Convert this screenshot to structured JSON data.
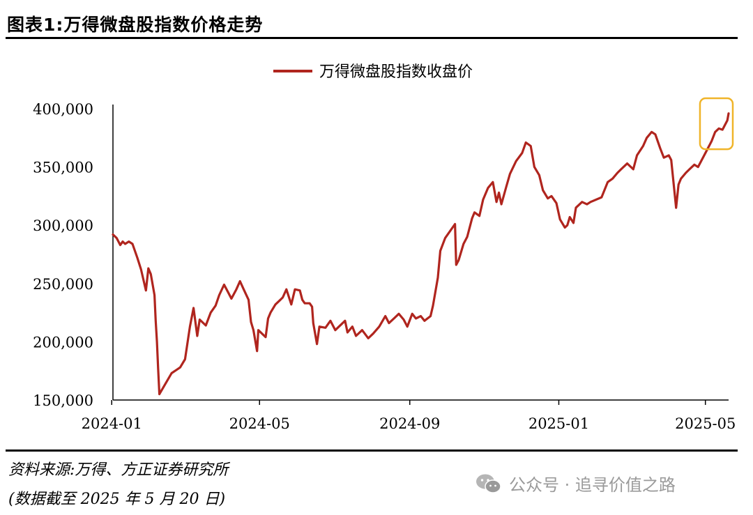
{
  "header": {
    "title": "图表1:万得微盘股指数价格走势"
  },
  "footer": {
    "source": "资料来源:万得、方正证券研究所",
    "note": "(数据截至 2025 年 5 月 20 日)",
    "watermark": "公众号 · 追寻价值之路"
  },
  "colors": {
    "line": "#B0251E",
    "highlight": "#F0B429",
    "axis": "#000000"
  },
  "chart_data": {
    "type": "line",
    "title": "",
    "xlabel": "",
    "ylabel": "",
    "ylim": [
      150000,
      400000
    ],
    "yticks": [
      150000,
      200000,
      250000,
      300000,
      350000,
      400000
    ],
    "ytick_labels": [
      "150,000",
      "200,000",
      "250,000",
      "300,000",
      "350,000",
      "400,000"
    ],
    "xlim": [
      "2024-01-02",
      "2025-05-20"
    ],
    "xticks": [
      "2024-01-01",
      "2024-05-01",
      "2024-09-01",
      "2025-01-01",
      "2025-05-01"
    ],
    "xtick_labels": [
      "2024-01",
      "2024-05",
      "2024-09",
      "2025-01",
      "2025-05"
    ],
    "legend": {
      "position": "top-center",
      "entries": [
        "万得微盘股指数收盘价"
      ]
    },
    "grid": false,
    "annotations": [
      {
        "type": "highlight-box",
        "x_range": [
          "2025-04-30",
          "2025-05-20"
        ],
        "y_range": [
          370000,
          397000
        ]
      }
    ],
    "series": [
      {
        "name": "万得微盘股指数收盘价",
        "points": [
          [
            "2024-01-02",
            292000
          ],
          [
            "2024-01-05",
            289000
          ],
          [
            "2024-01-08",
            283000
          ],
          [
            "2024-01-10",
            286000
          ],
          [
            "2024-01-12",
            284000
          ],
          [
            "2024-01-15",
            286000
          ],
          [
            "2024-01-18",
            284000
          ],
          [
            "2024-01-22",
            272000
          ],
          [
            "2024-01-25",
            262000
          ],
          [
            "2024-01-29",
            244000
          ],
          [
            "2024-01-31",
            263000
          ],
          [
            "2024-02-02",
            258000
          ],
          [
            "2024-02-05",
            240000
          ],
          [
            "2024-02-06",
            218000
          ],
          [
            "2024-02-07",
            200000
          ],
          [
            "2024-02-08",
            177000
          ],
          [
            "2024-02-09",
            155000
          ],
          [
            "2024-02-19",
            173000
          ],
          [
            "2024-02-26",
            178000
          ],
          [
            "2024-03-01",
            185000
          ],
          [
            "2024-03-05",
            213000
          ],
          [
            "2024-03-08",
            229000
          ],
          [
            "2024-03-11",
            205000
          ],
          [
            "2024-03-13",
            219000
          ],
          [
            "2024-03-18",
            214000
          ],
          [
            "2024-03-22",
            225000
          ],
          [
            "2024-03-26",
            231000
          ],
          [
            "2024-03-29",
            240000
          ],
          [
            "2024-04-02",
            249000
          ],
          [
            "2024-04-05",
            243000
          ],
          [
            "2024-04-08",
            237000
          ],
          [
            "2024-04-12",
            245000
          ],
          [
            "2024-04-15",
            252000
          ],
          [
            "2024-04-18",
            245000
          ],
          [
            "2024-04-22",
            236000
          ],
          [
            "2024-04-24",
            217000
          ],
          [
            "2024-04-26",
            210000
          ],
          [
            "2024-04-29",
            192000
          ],
          [
            "2024-04-30",
            210000
          ],
          [
            "2024-05-06",
            204000
          ],
          [
            "2024-05-08",
            220000
          ],
          [
            "2024-05-10",
            225000
          ],
          [
            "2024-05-14",
            232000
          ],
          [
            "2024-05-17",
            235000
          ],
          [
            "2024-05-20",
            238000
          ],
          [
            "2024-05-23",
            245000
          ],
          [
            "2024-05-27",
            232000
          ],
          [
            "2024-05-30",
            245000
          ],
          [
            "2024-06-03",
            244000
          ],
          [
            "2024-06-05",
            236000
          ],
          [
            "2024-06-07",
            233000
          ],
          [
            "2024-06-11",
            233000
          ],
          [
            "2024-06-13",
            230000
          ],
          [
            "2024-06-14",
            216000
          ],
          [
            "2024-06-17",
            198000
          ],
          [
            "2024-06-19",
            213000
          ],
          [
            "2024-06-24",
            212000
          ],
          [
            "2024-06-28",
            218000
          ],
          [
            "2024-07-02",
            210000
          ],
          [
            "2024-07-05",
            213000
          ],
          [
            "2024-07-10",
            218000
          ],
          [
            "2024-07-12",
            208000
          ],
          [
            "2024-07-16",
            213000
          ],
          [
            "2024-07-19",
            205000
          ],
          [
            "2024-07-24",
            210000
          ],
          [
            "2024-07-29",
            203000
          ],
          [
            "2024-08-02",
            207000
          ],
          [
            "2024-08-07",
            213000
          ],
          [
            "2024-08-12",
            222000
          ],
          [
            "2024-08-15",
            216000
          ],
          [
            "2024-08-19",
            220000
          ],
          [
            "2024-08-23",
            224000
          ],
          [
            "2024-08-27",
            219000
          ],
          [
            "2024-08-30",
            213000
          ],
          [
            "2024-09-03",
            224000
          ],
          [
            "2024-09-06",
            220000
          ],
          [
            "2024-09-10",
            222000
          ],
          [
            "2024-09-13",
            218000
          ],
          [
            "2024-09-18",
            222000
          ],
          [
            "2024-09-20",
            231000
          ],
          [
            "2024-09-24",
            255000
          ],
          [
            "2024-09-26",
            278000
          ],
          [
            "2024-09-30",
            289000
          ],
          [
            "2024-10-08",
            301000
          ],
          [
            "2024-10-09",
            266000
          ],
          [
            "2024-10-11",
            270000
          ],
          [
            "2024-10-15",
            284000
          ],
          [
            "2024-10-18",
            290000
          ],
          [
            "2024-10-22",
            306000
          ],
          [
            "2024-10-24",
            311000
          ],
          [
            "2024-10-28",
            308000
          ],
          [
            "2024-10-31",
            322000
          ],
          [
            "2024-11-04",
            332000
          ],
          [
            "2024-11-08",
            337000
          ],
          [
            "2024-11-11",
            320000
          ],
          [
            "2024-11-13",
            328000
          ],
          [
            "2024-11-15",
            318000
          ],
          [
            "2024-11-19",
            333000
          ],
          [
            "2024-11-22",
            344000
          ],
          [
            "2024-11-27",
            355000
          ],
          [
            "2024-12-02",
            362000
          ],
          [
            "2024-12-05",
            371000
          ],
          [
            "2024-12-09",
            368000
          ],
          [
            "2024-12-12",
            350000
          ],
          [
            "2024-12-16",
            343000
          ],
          [
            "2024-12-19",
            330000
          ],
          [
            "2024-12-23",
            323000
          ],
          [
            "2024-12-26",
            325000
          ],
          [
            "2024-12-30",
            319000
          ],
          [
            "2025-01-02",
            305000
          ],
          [
            "2025-01-06",
            298000
          ],
          [
            "2025-01-08",
            300000
          ],
          [
            "2025-01-10",
            307000
          ],
          [
            "2025-01-13",
            302000
          ],
          [
            "2025-01-15",
            315000
          ],
          [
            "2025-01-20",
            320000
          ],
          [
            "2025-01-24",
            318000
          ],
          [
            "2025-01-27",
            320000
          ],
          [
            "2025-02-05",
            324000
          ],
          [
            "2025-02-10",
            337000
          ],
          [
            "2025-02-14",
            340000
          ],
          [
            "2025-02-18",
            345000
          ],
          [
            "2025-02-21",
            348000
          ],
          [
            "2025-02-26",
            353000
          ],
          [
            "2025-03-03",
            348000
          ],
          [
            "2025-03-06",
            360000
          ],
          [
            "2025-03-11",
            368000
          ],
          [
            "2025-03-14",
            375000
          ],
          [
            "2025-03-18",
            380000
          ],
          [
            "2025-03-21",
            378000
          ],
          [
            "2025-03-25",
            366000
          ],
          [
            "2025-03-28",
            358000
          ],
          [
            "2025-04-01",
            360000
          ],
          [
            "2025-04-03",
            356000
          ],
          [
            "2025-04-07",
            315000
          ],
          [
            "2025-04-09",
            335000
          ],
          [
            "2025-04-11",
            340000
          ],
          [
            "2025-04-15",
            345000
          ],
          [
            "2025-04-18",
            348000
          ],
          [
            "2025-04-22",
            352000
          ],
          [
            "2025-04-25",
            350000
          ],
          [
            "2025-04-30",
            360000
          ],
          [
            "2025-05-06",
            372000
          ],
          [
            "2025-05-09",
            380000
          ],
          [
            "2025-05-12",
            383000
          ],
          [
            "2025-05-15",
            382000
          ],
          [
            "2025-05-19",
            390000
          ],
          [
            "2025-05-20",
            396000
          ]
        ]
      }
    ]
  }
}
